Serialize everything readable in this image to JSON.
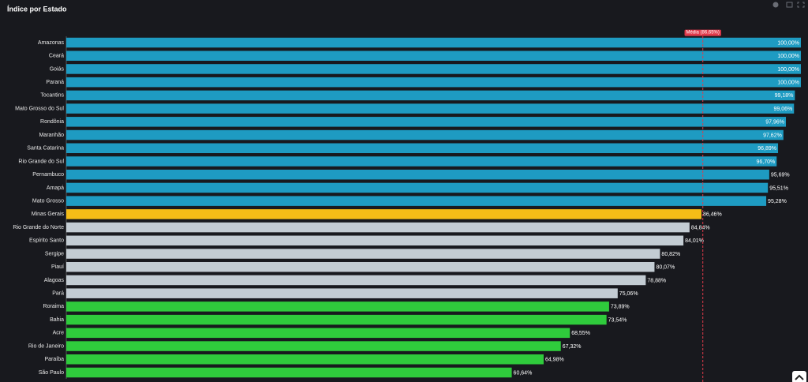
{
  "chart_data": {
    "type": "bar",
    "orientation": "horizontal",
    "title": "Índice por Estado",
    "categories": [
      "Amazonas",
      "Ceará",
      "Goiás",
      "Paraná",
      "Tocantins",
      "Mato Grosso do Sul",
      "Rondônia",
      "Maranhão",
      "Santa Catarina",
      "Rio Grande do Sul",
      "Pernambuco",
      "Amapá",
      "Mato Grosso",
      "Minas Gerais",
      "Rio Grande do Norte",
      "Espírito Santo",
      "Sergipe",
      "Piauí",
      "Alagoas",
      "Pará",
      "Roraima",
      "Bahia",
      "Acre",
      "Rio de Janeiro",
      "Paraíba",
      "São Paulo"
    ],
    "values": [
      100,
      100,
      100,
      100,
      99.18,
      99.06,
      97.96,
      97.62,
      96.89,
      96.7,
      95.69,
      95.51,
      95.28,
      86.46,
      84.84,
      84.01,
      80.82,
      80.07,
      78.88,
      75.06,
      73.89,
      73.54,
      68.55,
      67.32,
      64.98,
      60.64
    ],
    "value_labels": [
      "100,00%",
      "100,00%",
      "100,00%",
      "100,00%",
      "99,18%",
      "99,06%",
      "97,96%",
      "97,62%",
      "96,89%",
      "96,70%",
      "95,69%",
      "95,51%",
      "95,28%",
      "86,46%",
      "84,84%",
      "84,01%",
      "80,82%",
      "80,07%",
      "78,88%",
      "75,06%",
      "73,89%",
      "73,54%",
      "68,55%",
      "67,32%",
      "64,98%",
      "60,64%"
    ],
    "colors": [
      "#1e9bc2",
      "#1e9bc2",
      "#1e9bc2",
      "#1e9bc2",
      "#1e9bc2",
      "#1e9bc2",
      "#1e9bc2",
      "#1e9bc2",
      "#1e9bc2",
      "#1e9bc2",
      "#1e9bc2",
      "#1e9bc2",
      "#1e9bc2",
      "#f5bd17",
      "#c3ccd3",
      "#c3ccd3",
      "#c3ccd3",
      "#c3ccd3",
      "#c3ccd3",
      "#c3ccd3",
      "#2fcb3c",
      "#2fcb3c",
      "#2fcb3c",
      "#2fcb3c",
      "#2fcb3c",
      "#2fcb3c"
    ],
    "xlim": [
      0,
      100
    ],
    "average_line": {
      "value": 86.65,
      "label": "Média (86,65%)",
      "color": "#e0394a"
    }
  }
}
